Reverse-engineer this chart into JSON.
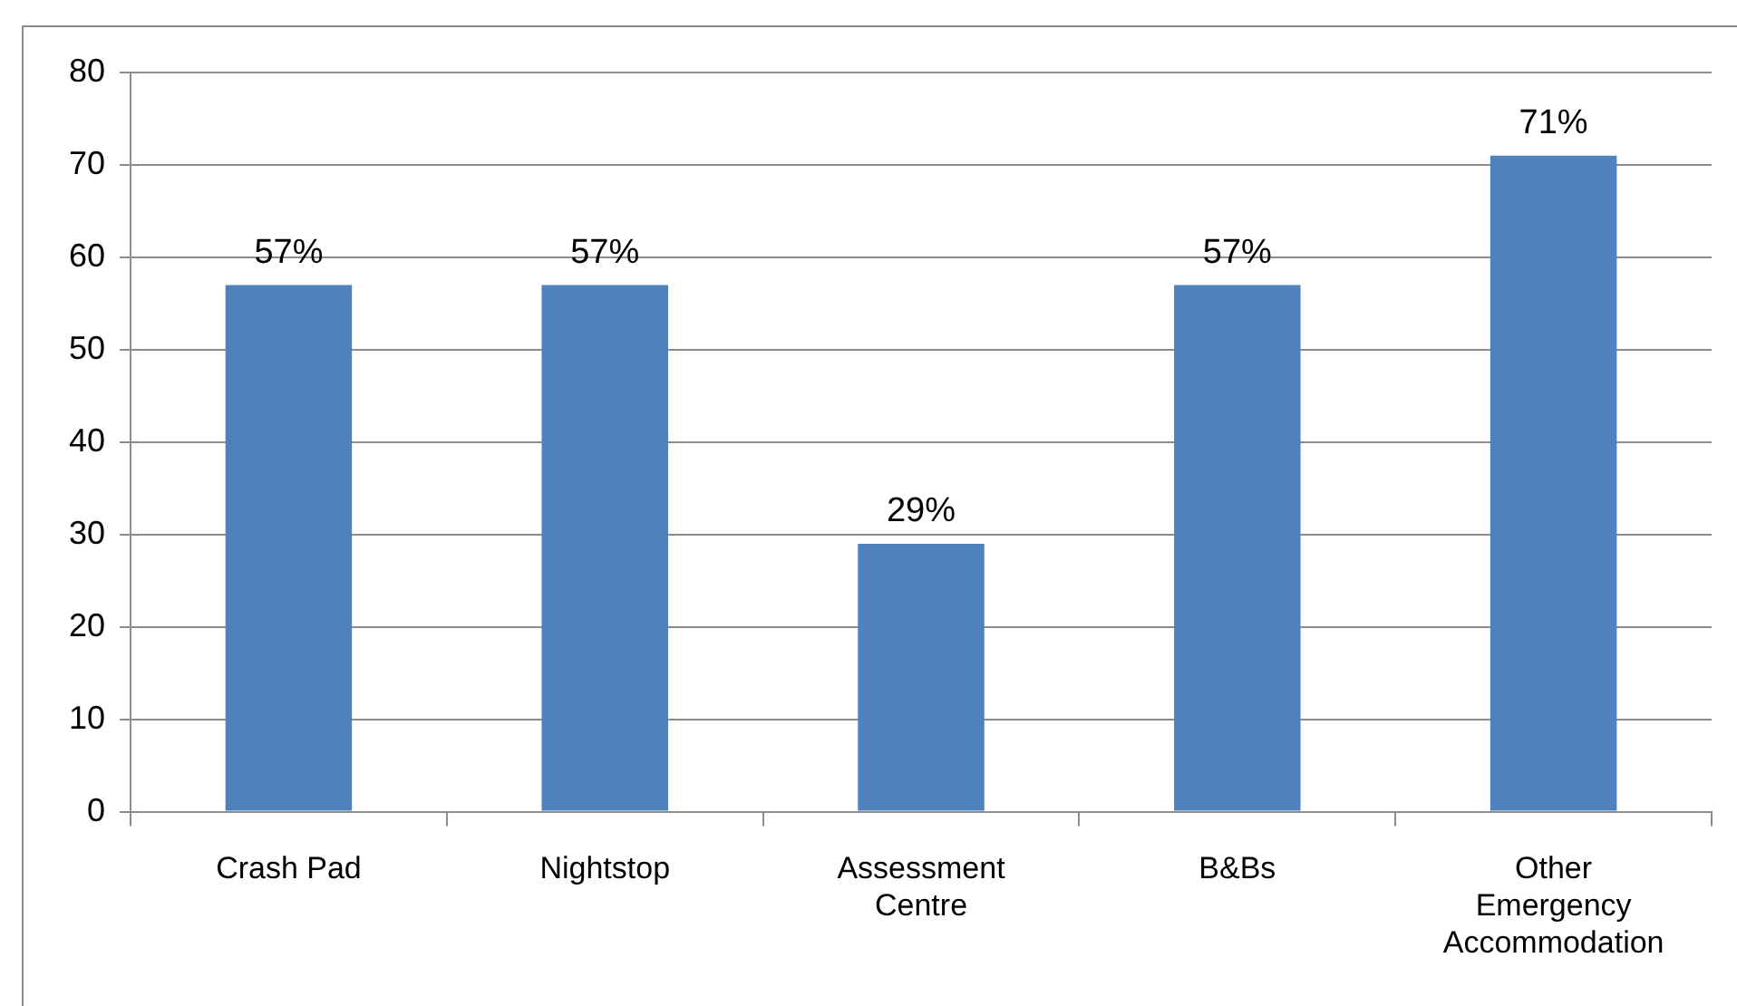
{
  "chart_data": {
    "type": "bar",
    "categories": [
      "Crash Pad",
      "Nightstop",
      "Assessment Centre",
      "B&Bs",
      "Other Emergency Accommodation"
    ],
    "values": [
      57,
      57,
      29,
      57,
      71
    ],
    "value_labels": [
      "57%",
      "57%",
      "29%",
      "57%",
      "71%"
    ],
    "color": "#4f81bd",
    "ylim": [
      0,
      80
    ],
    "yticks": [
      0,
      10,
      20,
      30,
      40,
      50,
      60,
      70,
      80
    ],
    "grid": "y"
  }
}
